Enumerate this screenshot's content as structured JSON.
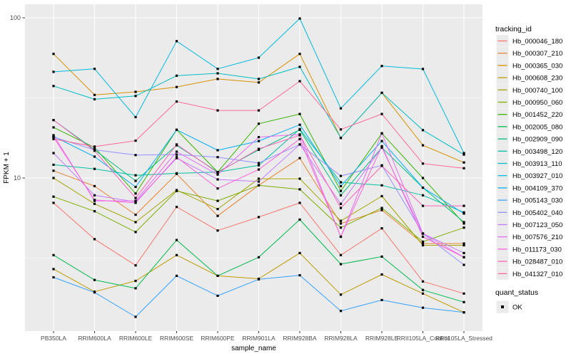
{
  "figure": {
    "y_axis": {
      "label": "FPKM + 1",
      "tick_labels": [
        "100",
        "10"
      ]
    },
    "x_axis": {
      "label": "sample_name"
    },
    "legend": {
      "tracking_title": "tracking_id",
      "quant_title": "quant_status",
      "quant_value": "OK",
      "quant_marker": "black-square"
    },
    "colors": {
      "panel_bg": "#EBEBEB",
      "grid": "#FFFFFF",
      "point": "#000000",
      "tick_text": "#4D4D4D",
      "axis_title_text": "#000000",
      "legend_key_bg": "#EBEBEB"
    }
  },
  "chart_data": {
    "type": "line",
    "title": "",
    "xlabel": "sample_name",
    "ylabel": "FPKM + 1",
    "y_scale": "log10",
    "y_major_ticks": [
      10,
      100
    ],
    "y_minor_gridlines": [
      3.162,
      31.62
    ],
    "ylim": [
      1.1,
      121
    ],
    "grid": true,
    "legend_position": "right",
    "point_marker": "black-square",
    "quant_status": {
      "label": "quant_status",
      "value": "OK"
    },
    "categories": [
      "PB350LA",
      "RRIM600LA",
      "RRIM600LE",
      "RRIM600SE",
      "RRIM600PE",
      "RRIM901LA",
      "RRIM928BA",
      "RRIM928LA",
      "RRIM928LE",
      "RRII105LA_Control",
      "RRII105LA_Stressed"
    ],
    "series": [
      {
        "name": "Hb_000046_180",
        "color": "#F8766D",
        "values": [
          7.0,
          4.15,
          2.85,
          6.6,
          4.7,
          5.7,
          7.0,
          3.3,
          4.85,
          2.26,
          1.9
        ]
      },
      {
        "name": "Hb_000307_210",
        "color": "#EA8331",
        "values": [
          11.1,
          8.9,
          5.9,
          10.6,
          5.8,
          9.0,
          13.3,
          5.2,
          6.3,
          3.9,
          3.9
        ]
      },
      {
        "name": "Hb_000365_030",
        "color": "#D89000",
        "values": [
          59.5,
          33,
          34.5,
          37,
          41.5,
          39.5,
          59.5,
          17.8,
          34,
          16,
          12.5
        ]
      },
      {
        "name": "Hb_000608_230",
        "color": "#C09B00",
        "values": [
          2.7,
          1.95,
          2.28,
          3.3,
          2.45,
          2.35,
          3.4,
          1.87,
          2.5,
          1.9,
          1.45
        ]
      },
      {
        "name": "Hb_000740_100",
        "color": "#A3A500",
        "values": [
          10.0,
          6.9,
          5.3,
          8.4,
          6.4,
          9.9,
          9.9,
          5.4,
          7.7,
          3.8,
          3.8
        ]
      },
      {
        "name": "Hb_000950_060",
        "color": "#7CAE00",
        "values": [
          7.65,
          6.2,
          4.6,
          8.3,
          7.2,
          9.0,
          8.5,
          4.9,
          6.5,
          4.0,
          4.9
        ]
      },
      {
        "name": "Hb_001452_220",
        "color": "#39B600",
        "values": [
          20.7,
          15.5,
          8.0,
          20,
          10.9,
          21.8,
          25.1,
          8.3,
          19,
          10,
          5.2
        ]
      },
      {
        "name": "Hb_002005_080",
        "color": "#00BB4E",
        "values": [
          3.3,
          2.31,
          2.05,
          4.1,
          2.45,
          3.2,
          5.5,
          2.9,
          3.23,
          2.0,
          1.68
        ]
      },
      {
        "name": "Hb_002909_090",
        "color": "#00BF7D",
        "values": [
          23,
          15,
          9.6,
          16,
          10.9,
          15,
          20,
          7.8,
          15.5,
          8.7,
          5.3
        ]
      },
      {
        "name": "Hb_003498_120",
        "color": "#00C1A3",
        "values": [
          12.1,
          11.4,
          10.4,
          10.7,
          10.9,
          12,
          20.2,
          9.4,
          9.0,
          7.8,
          6.1
        ]
      },
      {
        "name": "Hb_003913_110",
        "color": "#00BFC4",
        "values": [
          37.5,
          31,
          32.5,
          43.5,
          45,
          41.5,
          49.4,
          17.8,
          34,
          19.9,
          14.0
        ]
      },
      {
        "name": "Hb_003927_010",
        "color": "#00BAE0",
        "values": [
          46,
          48,
          24,
          71.5,
          48,
          56.4,
          99,
          27.2,
          50,
          47.9,
          14.3
        ]
      },
      {
        "name": "Hb_004109_370",
        "color": "#00B0F6",
        "values": [
          18.2,
          13.6,
          8.8,
          20,
          14.9,
          17,
          21.5,
          8.9,
          17,
          8.7,
          6.0
        ]
      },
      {
        "name": "Hb_005143_030",
        "color": "#35A2FF",
        "values": [
          2.4,
          1.93,
          1.36,
          2.45,
          1.84,
          2.33,
          2.47,
          1.48,
          1.73,
          1.55,
          1.45
        ]
      },
      {
        "name": "Hb_005402_040",
        "color": "#9590FF",
        "values": [
          18,
          15,
          13.9,
          14,
          13.5,
          12.4,
          16.2,
          10.3,
          12,
          4.5,
          2.87
        ]
      },
      {
        "name": "Hb_007123_050",
        "color": "#C77CFF",
        "values": [
          14.3,
          7.8,
          7.1,
          13.3,
          9.8,
          9.5,
          16.2,
          6.9,
          15.5,
          4.5,
          3.4
        ]
      },
      {
        "name": "Hb_007576_210",
        "color": "#E76BF3",
        "values": [
          18.5,
          7.2,
          7.2,
          14.6,
          10.5,
          18,
          18.7,
          4.3,
          19,
          4.5,
          3.2
        ]
      },
      {
        "name": "Hb_011173_030",
        "color": "#FA62DB",
        "values": [
          18,
          7.3,
          7.0,
          13.5,
          8.6,
          11.3,
          17.5,
          4.3,
          15.8,
          4.3,
          3.2
        ]
      },
      {
        "name": "Hb_028487_010",
        "color": "#FF62BC",
        "values": [
          23,
          14.8,
          7.5,
          16.2,
          10.8,
          15.2,
          18.5,
          6.5,
          11.9,
          6.7,
          6.7
        ]
      },
      {
        "name": "Hb_041327_010",
        "color": "#FF6A98",
        "values": [
          17.5,
          15.7,
          17.1,
          30,
          26.4,
          26.4,
          40.2,
          20.1,
          25.1,
          12.3,
          11.5
        ]
      }
    ]
  }
}
